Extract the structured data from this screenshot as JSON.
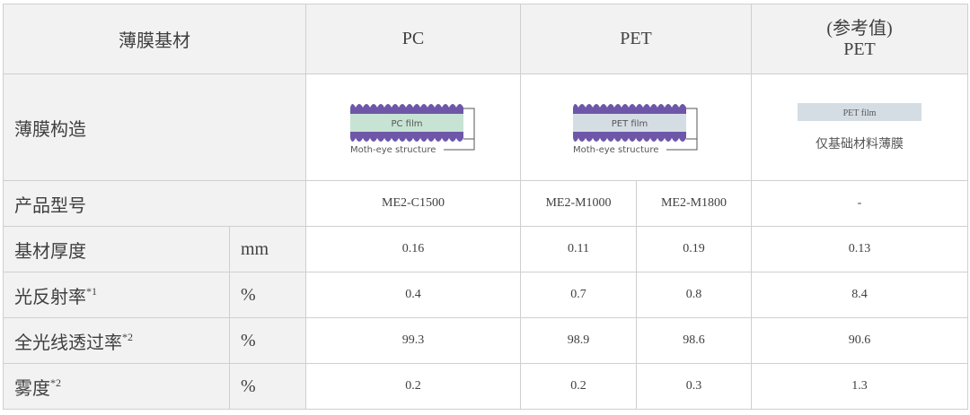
{
  "header": {
    "col1": "薄膜基材",
    "pc": "PC",
    "pet": "PET",
    "ref_line1": "(参考值)",
    "ref_line2": "PET"
  },
  "structure": {
    "label": "薄膜构造",
    "pc_film": "PC film",
    "pet_film": "PET film",
    "moth_eye": "Moth-eye structure",
    "ref_film": "PET film",
    "ref_note": "仅基础材料薄膜",
    "colors": {
      "bumps": "#6e57a8",
      "pc_film": "#c7e3d3",
      "pet_film": "#d5dde4"
    }
  },
  "rows": [
    {
      "label": "产品型号",
      "sup": "",
      "unit": "",
      "pc": "ME2-C1500",
      "pet1": "ME2-M1000",
      "pet2": "ME2-M1800",
      "ref": "-"
    },
    {
      "label": "基材厚度",
      "sup": "",
      "unit": "mm",
      "pc": "0.16",
      "pet1": "0.11",
      "pet2": "0.19",
      "ref": "0.13"
    },
    {
      "label": "光反射率",
      "sup": "*1",
      "unit": "%",
      "pc": "0.4",
      "pet1": "0.7",
      "pet2": "0.8",
      "ref": "8.4"
    },
    {
      "label": "全光线透过率",
      "sup": "*2",
      "unit": "%",
      "pc": "99.3",
      "pet1": "98.9",
      "pet2": "98.6",
      "ref": "90.6"
    },
    {
      "label": "雾度",
      "sup": "*2",
      "unit": "%",
      "pc": "0.2",
      "pet1": "0.2",
      "pet2": "0.3",
      "ref": "1.3"
    }
  ]
}
